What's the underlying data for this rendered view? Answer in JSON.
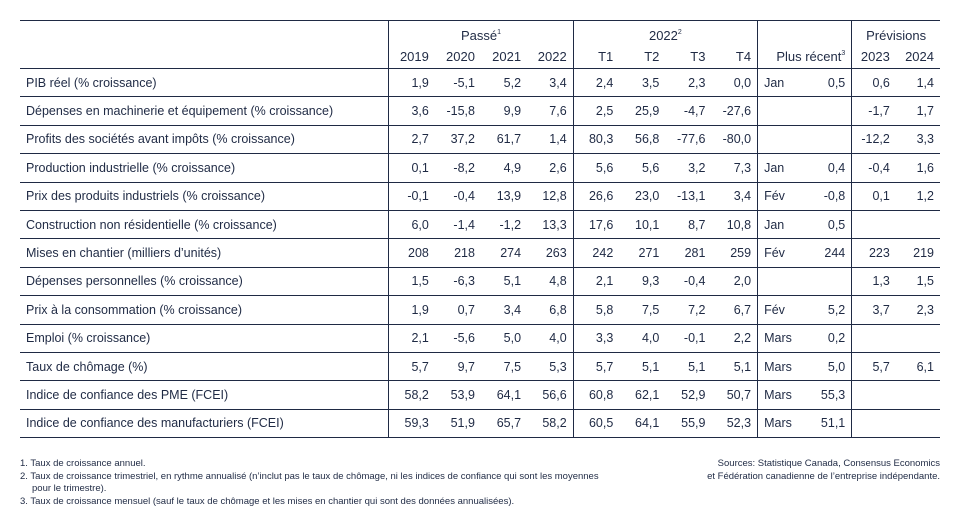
{
  "header": {
    "groups": {
      "past": "Passé",
      "past_sup": "1",
      "quarters": "2022",
      "quarters_sup": "2",
      "recent": "Plus récent",
      "recent_sup": "3",
      "forecast": "Prévisions"
    },
    "columns": [
      "2019",
      "2020",
      "2021",
      "2022",
      "T1",
      "T2",
      "T3",
      "T4",
      "2023",
      "2024"
    ]
  },
  "rows": [
    {
      "label": "PIB réel (% croissance)",
      "past": [
        "1,9",
        "-5,1",
        "5,2",
        "3,4"
      ],
      "quarters": [
        "2,4",
        "3,5",
        "2,3",
        "0,0"
      ],
      "recent": [
        "Jan",
        "0,5"
      ],
      "forecast": [
        "0,6",
        "1,4"
      ]
    },
    {
      "label": "Dépenses en machinerie et équipement (% croissance)",
      "past": [
        "3,6",
        "-15,8",
        "9,9",
        "7,6"
      ],
      "quarters": [
        "2,5",
        "25,9",
        "-4,7",
        "-27,6"
      ],
      "recent": [
        "",
        ""
      ],
      "forecast": [
        "-1,7",
        "1,7"
      ]
    },
    {
      "label": "Profits des sociétés avant impôts (% croissance)",
      "past": [
        "2,7",
        "37,2",
        "61,7",
        "1,4"
      ],
      "quarters": [
        "80,3",
        "56,8",
        "-77,6",
        "-80,0"
      ],
      "recent": [
        "",
        ""
      ],
      "forecast": [
        "-12,2",
        "3,3"
      ]
    },
    {
      "label": "Production industrielle (% croissance)",
      "past": [
        "0,1",
        "-8,2",
        "4,9",
        "2,6"
      ],
      "quarters": [
        "5,6",
        "5,6",
        "3,2",
        "7,3"
      ],
      "recent": [
        "Jan",
        "0,4"
      ],
      "forecast": [
        "-0,4",
        "1,6"
      ]
    },
    {
      "label": "Prix des produits industriels (% croissance)",
      "past": [
        "-0,1",
        "-0,4",
        "13,9",
        "12,8"
      ],
      "quarters": [
        "26,6",
        "23,0",
        "-13,1",
        "3,4"
      ],
      "recent": [
        "Fév",
        "-0,8"
      ],
      "forecast": [
        "0,1",
        "1,2"
      ]
    },
    {
      "label": "Construction non résidentielle (% croissance)",
      "past": [
        "6,0",
        "-1,4",
        "-1,2",
        "13,3"
      ],
      "quarters": [
        "17,6",
        "10,1",
        "8,7",
        "10,8"
      ],
      "recent": [
        "Jan",
        "0,5"
      ],
      "forecast": [
        "",
        ""
      ]
    },
    {
      "label": "Mises en chantier (milliers d’unités)",
      "past": [
        "208",
        "218",
        "274",
        "263"
      ],
      "quarters": [
        "242",
        "271",
        "281",
        "259"
      ],
      "recent": [
        "Fév",
        "244"
      ],
      "forecast": [
        "223",
        "219"
      ]
    },
    {
      "label": "Dépenses personnelles (% croissance)",
      "past": [
        "1,5",
        "-6,3",
        "5,1",
        "4,8"
      ],
      "quarters": [
        "2,1",
        "9,3",
        "-0,4",
        "2,0"
      ],
      "recent": [
        "",
        ""
      ],
      "forecast": [
        "1,3",
        "1,5"
      ]
    },
    {
      "label": "Prix à la consommation (% croissance)",
      "past": [
        "1,9",
        "0,7",
        "3,4",
        "6,8"
      ],
      "quarters": [
        "5,8",
        "7,5",
        "7,2",
        "6,7"
      ],
      "recent": [
        "Fév",
        "5,2"
      ],
      "forecast": [
        "3,7",
        "2,3"
      ]
    },
    {
      "label": "Emploi (% croissance)",
      "past": [
        "2,1",
        "-5,6",
        "5,0",
        "4,0"
      ],
      "quarters": [
        "3,3",
        "4,0",
        "-0,1",
        "2,2"
      ],
      "recent": [
        "Mars",
        "0,2"
      ],
      "forecast": [
        "",
        ""
      ]
    },
    {
      "label": "Taux de chômage (%)",
      "past": [
        "5,7",
        "9,7",
        "7,5",
        "5,3"
      ],
      "quarters": [
        "5,7",
        "5,1",
        "5,1",
        "5,1"
      ],
      "recent": [
        "Mars",
        "5,0"
      ],
      "forecast": [
        "5,7",
        "6,1"
      ]
    },
    {
      "label": "Indice de confiance des PME (FCEI)",
      "past": [
        "58,2",
        "53,9",
        "64,1",
        "56,6"
      ],
      "quarters": [
        "60,8",
        "62,1",
        "52,9",
        "50,7"
      ],
      "recent": [
        "Mars",
        "55,3"
      ],
      "forecast": [
        "",
        ""
      ]
    },
    {
      "label": "Indice de confiance des manufacturiers (FCEI)",
      "past": [
        "59,3",
        "51,9",
        "65,7",
        "58,2"
      ],
      "quarters": [
        "60,5",
        "64,1",
        "55,9",
        "52,3"
      ],
      "recent": [
        "Mars",
        "51,1"
      ],
      "forecast": [
        "",
        ""
      ]
    }
  ],
  "notes": [
    "1. Taux de croissance annuel.",
    "2. Taux de croissance trimestriel, en rythme annualisé (n’inclut pas le taux de chômage, ni les indices de confiance qui sont les moyennes pour le trimestre).",
    "3. Taux de croissance mensuel (sauf le taux de chômage et les mises en chantier qui sont des données annualisées)."
  ],
  "sources": {
    "line1": "Sources: Statistique Canada, Consensus Economics",
    "line2": "et Fédération canadienne de l’entreprise indépendante."
  }
}
